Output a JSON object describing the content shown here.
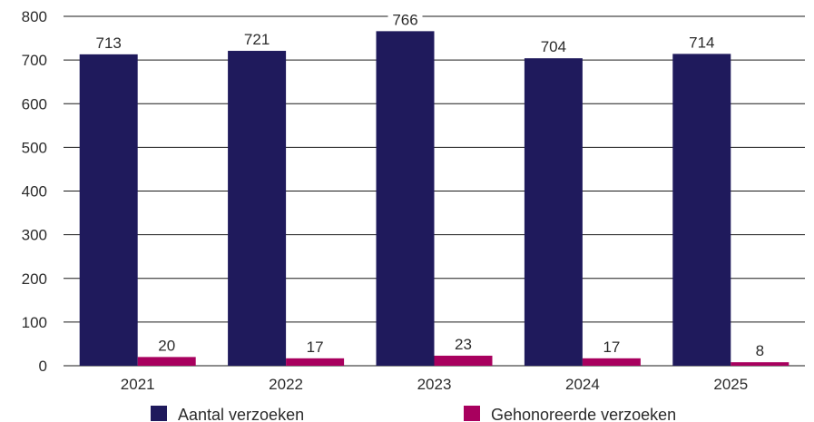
{
  "chart_data": {
    "type": "bar",
    "categories": [
      "2021",
      "2022",
      "2023",
      "2024",
      "2025"
    ],
    "series": [
      {
        "name": "Aantal verzoeken",
        "values": [
          713,
          721,
          766,
          704,
          714
        ],
        "color": "#1f1a5c"
      },
      {
        "name": "Gehonoreerde verzoeken",
        "values": [
          20,
          17,
          23,
          17,
          8
        ],
        "color": "#a8005e"
      }
    ],
    "ylim": [
      0,
      800
    ],
    "yticks": [
      0,
      100,
      200,
      300,
      400,
      500,
      600,
      700,
      800
    ],
    "grid": true,
    "legend": "bottom",
    "title": "",
    "xlabel": "",
    "ylabel": ""
  }
}
